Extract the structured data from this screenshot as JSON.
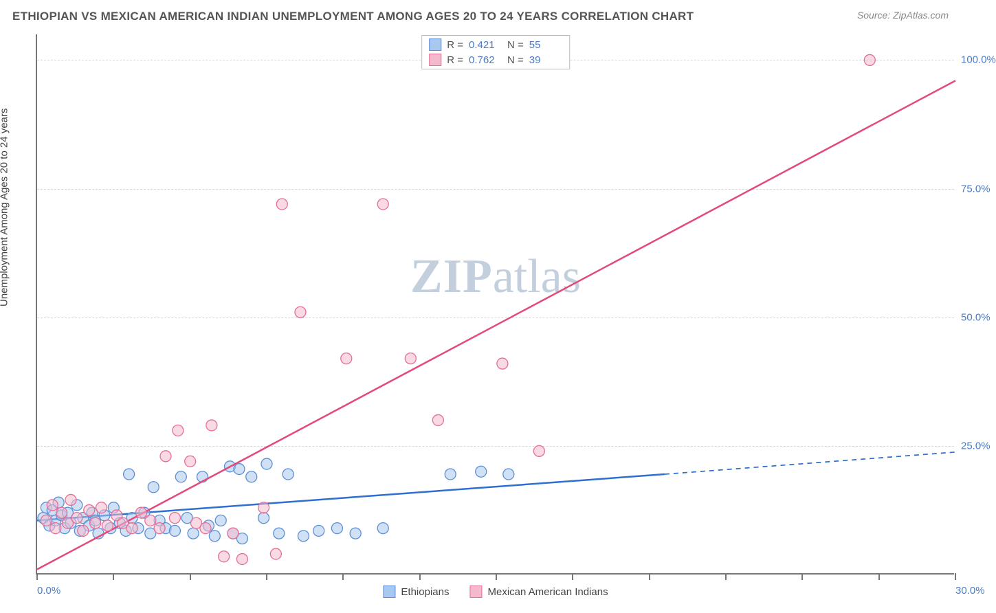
{
  "title": "ETHIOPIAN VS MEXICAN AMERICAN INDIAN UNEMPLOYMENT AMONG AGES 20 TO 24 YEARS CORRELATION CHART",
  "source": "Source: ZipAtlas.com",
  "ylabel": "Unemployment Among Ages 20 to 24 years",
  "watermark_zip": "ZIP",
  "watermark_atlas": "atlas",
  "chart": {
    "type": "scatter",
    "background_color": "#ffffff",
    "grid_color": "#d8d8d8",
    "axis_color": "#777777",
    "tick_label_color": "#4a7bc4",
    "xlim": [
      0,
      30
    ],
    "ylim": [
      0,
      105
    ],
    "xtick_positions": [
      0,
      2.5,
      5,
      7.5,
      10,
      12.5,
      15,
      17.5,
      20,
      22.5,
      25,
      27.5,
      30
    ],
    "xtick_labels_shown": {
      "0": "0.0%",
      "30": "30.0%"
    },
    "ytick_positions": [
      25,
      50,
      75,
      100
    ],
    "ytick_labels": {
      "25": "25.0%",
      "50": "50.0%",
      "75": "75.0%",
      "100": "100.0%"
    },
    "marker_radius": 8,
    "marker_opacity": 0.55,
    "line_width": 2.5,
    "series": [
      {
        "name": "Ethiopians",
        "color_fill": "#a9c8ef",
        "color_stroke": "#5b8fd6",
        "line_color": "#2f6fd0",
        "r": "0.421",
        "n": "55",
        "trend": {
          "x1": 0,
          "y1": 10.5,
          "x2": 20.5,
          "y2": 19.5,
          "dash_to_x": 30,
          "dash_to_y": 23.8
        },
        "points": [
          [
            0.2,
            11
          ],
          [
            0.3,
            13
          ],
          [
            0.4,
            9.5
          ],
          [
            0.5,
            12.5
          ],
          [
            0.6,
            10.5
          ],
          [
            0.7,
            14
          ],
          [
            0.8,
            11.5
          ],
          [
            0.9,
            9
          ],
          [
            1.0,
            12
          ],
          [
            1.1,
            10
          ],
          [
            1.3,
            13.5
          ],
          [
            1.4,
            8.5
          ],
          [
            1.5,
            11
          ],
          [
            1.7,
            9.5
          ],
          [
            1.8,
            12
          ],
          [
            1.9,
            10.5
          ],
          [
            2.0,
            8
          ],
          [
            2.2,
            11.5
          ],
          [
            2.4,
            9
          ],
          [
            2.5,
            13
          ],
          [
            2.7,
            10
          ],
          [
            2.9,
            8.5
          ],
          [
            3.0,
            19.5
          ],
          [
            3.1,
            11
          ],
          [
            3.3,
            9
          ],
          [
            3.5,
            12
          ],
          [
            3.7,
            8
          ],
          [
            3.8,
            17
          ],
          [
            4.0,
            10.5
          ],
          [
            4.2,
            9
          ],
          [
            4.5,
            8.5
          ],
          [
            4.7,
            19
          ],
          [
            4.9,
            11
          ],
          [
            5.1,
            8
          ],
          [
            5.4,
            19
          ],
          [
            5.6,
            9.5
          ],
          [
            5.8,
            7.5
          ],
          [
            6.0,
            10.5
          ],
          [
            6.3,
            21
          ],
          [
            6.4,
            8
          ],
          [
            6.6,
            20.5
          ],
          [
            6.7,
            7
          ],
          [
            7.0,
            19
          ],
          [
            7.4,
            11
          ],
          [
            7.5,
            21.5
          ],
          [
            7.9,
            8
          ],
          [
            8.2,
            19.5
          ],
          [
            8.7,
            7.5
          ],
          [
            9.2,
            8.5
          ],
          [
            9.8,
            9
          ],
          [
            10.4,
            8
          ],
          [
            11.3,
            9
          ],
          [
            13.5,
            19.5
          ],
          [
            14.5,
            20
          ],
          [
            15.4,
            19.5
          ]
        ]
      },
      {
        "name": "Mexican American Indians",
        "color_fill": "#f4b9cc",
        "color_stroke": "#e56f95",
        "line_color": "#e34a7a",
        "r": "0.762",
        "n": "39",
        "trend": {
          "x1": 0,
          "y1": 1,
          "x2": 30,
          "y2": 96
        },
        "points": [
          [
            0.3,
            10.5
          ],
          [
            0.5,
            13.5
          ],
          [
            0.6,
            9
          ],
          [
            0.8,
            12
          ],
          [
            1.0,
            10
          ],
          [
            1.1,
            14.5
          ],
          [
            1.3,
            11
          ],
          [
            1.5,
            8.5
          ],
          [
            1.7,
            12.5
          ],
          [
            1.9,
            10
          ],
          [
            2.1,
            13
          ],
          [
            2.3,
            9.5
          ],
          [
            2.6,
            11.5
          ],
          [
            2.8,
            10
          ],
          [
            3.1,
            9
          ],
          [
            3.4,
            12
          ],
          [
            3.7,
            10.5
          ],
          [
            4.0,
            9
          ],
          [
            4.2,
            23
          ],
          [
            4.5,
            11
          ],
          [
            4.6,
            28
          ],
          [
            5.0,
            22
          ],
          [
            5.2,
            10
          ],
          [
            5.5,
            9
          ],
          [
            5.7,
            29
          ],
          [
            6.1,
            3.5
          ],
          [
            6.4,
            8
          ],
          [
            6.7,
            3
          ],
          [
            7.4,
            13
          ],
          [
            7.8,
            4
          ],
          [
            8.0,
            72
          ],
          [
            8.6,
            51
          ],
          [
            10.1,
            42
          ],
          [
            11.3,
            72
          ],
          [
            12.2,
            42
          ],
          [
            13.1,
            30
          ],
          [
            15.2,
            41
          ],
          [
            16.4,
            24
          ],
          [
            27.2,
            100
          ]
        ]
      }
    ]
  },
  "legend_top_label_r": "R =",
  "legend_top_label_n": "N ="
}
